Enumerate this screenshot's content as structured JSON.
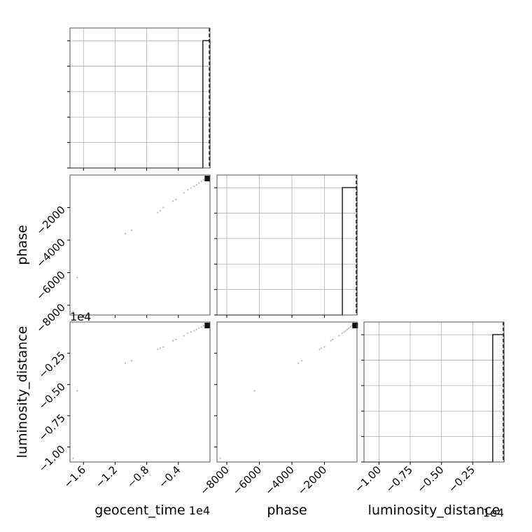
{
  "chart_data": {
    "type": "corner",
    "parameters": [
      {
        "name": "geocent_time",
        "label": "geocent_time",
        "range": [
          -17700,
          0
        ],
        "ticks": [
          -16000,
          -12000,
          -8000,
          -4000
        ],
        "tick_labels": [
          "−1.6",
          "−1.2",
          "−0.8",
          "−0.4"
        ],
        "offset_text": "1e4",
        "truth": 0
      },
      {
        "name": "phase",
        "label": "phase",
        "range": [
          -8600,
          0
        ],
        "ticks": [
          -8000,
          -6000,
          -4000,
          -2000
        ],
        "tick_labels": [
          "−8000",
          "−6000",
          "−4000",
          "−2000"
        ],
        "offset_text": "",
        "truth": 0
      },
      {
        "name": "luminosity_distance",
        "label": "luminosity_distance",
        "range": [
          -11200,
          0
        ],
        "ticks": [
          -10000,
          -7500,
          -5000,
          -2500
        ],
        "tick_labels": [
          "−1.00",
          "−0.75",
          "−0.50",
          "−0.25"
        ],
        "offset_text": "1e4",
        "truth": 0
      }
    ],
    "histograms": [
      {
        "parameter": "geocent_time",
        "bins": [
          {
            "from": -17700,
            "to": -900,
            "density": 0
          },
          {
            "from": -900,
            "to": 0,
            "density": 1
          }
        ]
      },
      {
        "parameter": "phase",
        "bins": [
          {
            "from": -8600,
            "to": -900,
            "density": 0
          },
          {
            "from": -900,
            "to": 0,
            "density": 1
          }
        ]
      },
      {
        "parameter": "luminosity_distance",
        "bins": [
          {
            "from": -11200,
            "to": -900,
            "density": 0
          },
          {
            "from": -900,
            "to": 0,
            "density": 1
          }
        ]
      }
    ],
    "samples": [
      {
        "t": -17300,
        "p": -8400,
        "d": -10900
      },
      {
        "t": -16800,
        "p": -6300,
        "d": -5500
      },
      {
        "t": -10700,
        "p": -3600,
        "d": -3300
      },
      {
        "t": -9900,
        "p": -3400,
        "d": -3100
      },
      {
        "t": -6600,
        "p": -2300,
        "d": -2200
      },
      {
        "t": -6300,
        "p": -2200,
        "d": -2100
      },
      {
        "t": -5900,
        "p": -2000,
        "d": -2000
      },
      {
        "t": -4700,
        "p": -1600,
        "d": -1500
      },
      {
        "t": -4300,
        "p": -1500,
        "d": -1400
      },
      {
        "t": -3300,
        "p": -1100,
        "d": -1100
      },
      {
        "t": -2800,
        "p": -900,
        "d": -900
      },
      {
        "t": -2400,
        "p": -800,
        "d": -800
      },
      {
        "t": -2000,
        "p": -700,
        "d": -700
      },
      {
        "t": -1700,
        "p": -600,
        "d": -600
      },
      {
        "t": -1400,
        "p": -500,
        "d": -500
      },
      {
        "t": -1100,
        "p": -400,
        "d": -400
      },
      {
        "t": -800,
        "p": -300,
        "d": -300
      },
      {
        "t": -500,
        "p": -200,
        "d": -200
      }
    ],
    "dense_region": {
      "t": [
        -500,
        0
      ],
      "p": [
        -200,
        0
      ],
      "d": [
        -200,
        0
      ]
    },
    "grid": true
  }
}
